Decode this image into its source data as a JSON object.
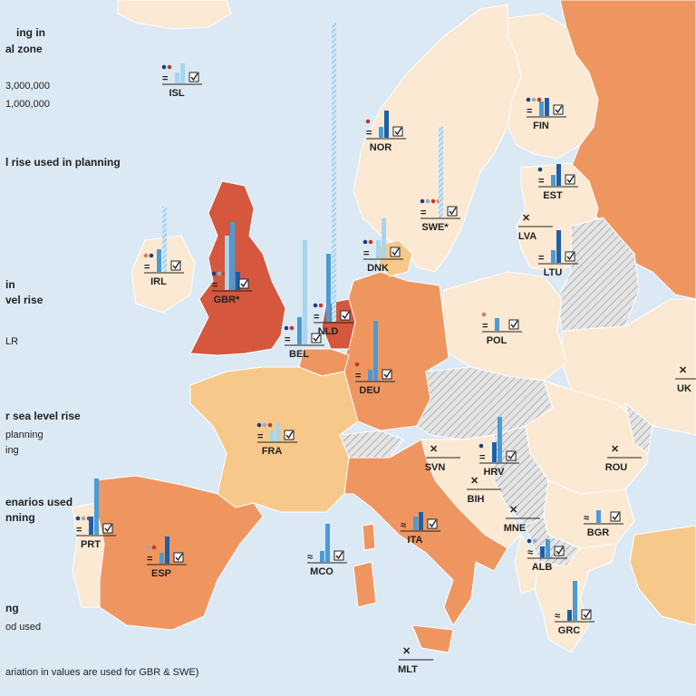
{
  "colors": {
    "sea": "#dbe9f4",
    "land_default": "#fbe9d3",
    "land_light_orange": "#f6c98a",
    "land_orange": "#ef9660",
    "land_dark_orange": "#e07a50",
    "land_red": "#d4573e",
    "border": "#ffffff",
    "hatch": "#bfbfbf",
    "bar_light": "#a8d4ee",
    "bar_mid": "#4a9bd6",
    "bar_dark": "#1d5fa8"
  },
  "legend": {
    "line1": "ing in",
    "line2": "al zone",
    "val1": "3,000,000",
    "val2": "1,000,000",
    "heading2": "l rise used in planning",
    "heading3a": "in",
    "heading3b": "vel rise",
    "lr": "LR",
    "heading4": "r sea level rise",
    "planning": "planning",
    "ing": "ing",
    "heading5a": "enarios used",
    "heading5b": "nning",
    "heading6a": "ng",
    "heading6b": "od used",
    "footnote": "ariation in values are used for GBR & SWE)"
  },
  "countries": [
    {
      "code": "ISL",
      "label": "ISL"
    },
    {
      "code": "NOR",
      "label": "NOR"
    },
    {
      "code": "FIN",
      "label": "FIN"
    },
    {
      "code": "EST",
      "label": "EST"
    },
    {
      "code": "LVA",
      "label": "LVA"
    },
    {
      "code": "LTU",
      "label": "LTU"
    },
    {
      "code": "SWE",
      "label": "SWE*"
    },
    {
      "code": "DNK",
      "label": "DNK"
    },
    {
      "code": "IRL",
      "label": "IRL"
    },
    {
      "code": "GBR",
      "label": "GBR*"
    },
    {
      "code": "NLD",
      "label": "NLD"
    },
    {
      "code": "BEL",
      "label": "BEL"
    },
    {
      "code": "DEU",
      "label": "DEU"
    },
    {
      "code": "POL",
      "label": "POL"
    },
    {
      "code": "UKR",
      "label": "UK"
    },
    {
      "code": "FRA",
      "label": "FRA"
    },
    {
      "code": "SVN",
      "label": "SVN"
    },
    {
      "code": "HRV",
      "label": "HRV"
    },
    {
      "code": "ROU",
      "label": "ROU"
    },
    {
      "code": "BIH",
      "label": "BIH"
    },
    {
      "code": "MNE",
      "label": "MNE"
    },
    {
      "code": "PRT",
      "label": "PRT"
    },
    {
      "code": "ESP",
      "label": "ESP"
    },
    {
      "code": "MCO",
      "label": "MCO"
    },
    {
      "code": "ITA",
      "label": "ITA"
    },
    {
      "code": "ALB",
      "label": "ALB"
    },
    {
      "code": "BGR",
      "label": "BGR"
    },
    {
      "code": "GRC",
      "label": "GRC"
    },
    {
      "code": "MLT",
      "label": "MLT"
    }
  ]
}
